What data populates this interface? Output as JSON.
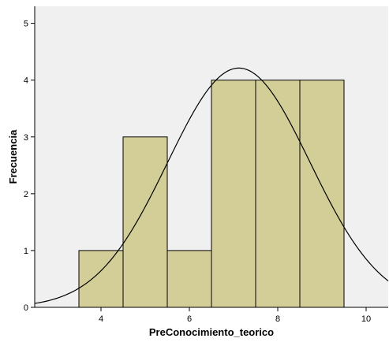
{
  "chart_data": {
    "type": "bar",
    "subtype": "histogram-with-normal-curve",
    "xlabel": "PreConocimiento_teorico",
    "ylabel": "Frecuencia",
    "xlim": [
      2.5,
      10.5
    ],
    "ylim": [
      0,
      5.3
    ],
    "x_ticks": [
      4,
      6,
      8,
      10
    ],
    "y_ticks": [
      0,
      1,
      2,
      3,
      4,
      5
    ],
    "bins": [
      {
        "start": 3.5,
        "end": 4.5,
        "count": 1
      },
      {
        "start": 4.5,
        "end": 5.5,
        "count": 3
      },
      {
        "start": 5.5,
        "end": 6.5,
        "count": 1
      },
      {
        "start": 6.5,
        "end": 7.5,
        "count": 4
      },
      {
        "start": 7.5,
        "end": 8.5,
        "count": 4
      },
      {
        "start": 8.5,
        "end": 9.5,
        "count": 4
      }
    ],
    "normal_curve": {
      "mean": 7.12,
      "std_dev": 1.61,
      "n": 17,
      "bin_width": 1
    },
    "grid": false,
    "colors": {
      "plot_background": "#f0f0f0",
      "bar_fill": "#d3ce97",
      "bar_stroke": "#000000",
      "curve": "#000000"
    }
  }
}
